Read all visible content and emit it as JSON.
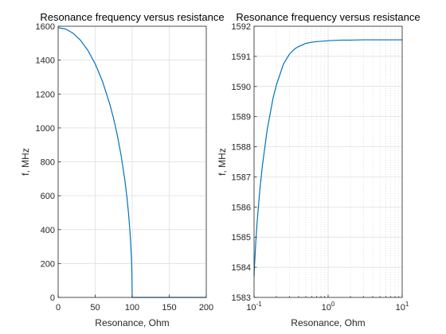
{
  "chart_data": [
    {
      "type": "line",
      "title": "Resonance frequency versus resistance",
      "xlabel": "Resonance, Ohm",
      "ylabel": "f, MHz",
      "xlim": [
        0,
        200
      ],
      "ylim": [
        0,
        1600
      ],
      "xscale": "linear",
      "grid": true,
      "xticks": [
        0,
        50,
        100,
        150,
        200
      ],
      "xtick_labels": [
        "0",
        "50",
        "100",
        "150",
        "200"
      ],
      "yticks": [
        0,
        200,
        400,
        600,
        800,
        1000,
        1200,
        1400,
        1600
      ],
      "ytick_labels": [
        "0",
        "200",
        "400",
        "600",
        "800",
        "1000",
        "1200",
        "1400",
        "1600"
      ],
      "series": [
        {
          "color": "#0072BD",
          "x": [
            0,
            10,
            20,
            30,
            40,
            50,
            60,
            70,
            75,
            80,
            85,
            90,
            93,
            95,
            97,
            98,
            99,
            99.5,
            100,
            100.5,
            110,
            120,
            140,
            160,
            180,
            200
          ],
          "y": [
            1591.5,
            1583.6,
            1559.4,
            1518.2,
            1458.6,
            1378.3,
            1273.2,
            1136.6,
            1052.6,
            954.9,
            838.4,
            693.7,
            586.7,
            496.9,
            385.9,
            316.7,
            224.5,
            158.9,
            0,
            0,
            0,
            0,
            0,
            0,
            0,
            0
          ]
        }
      ]
    },
    {
      "type": "line",
      "title": "Resonance frequency versus resistance",
      "xlabel": "Resonance, Ohm",
      "ylabel": "f, MHz",
      "xlim": [
        0.1,
        10
      ],
      "ylim": [
        1583,
        1592
      ],
      "xscale": "log",
      "grid": true,
      "xticks": [
        0.1,
        1,
        10
      ],
      "xtick_labels": [
        {
          "base": "10",
          "exp": "-1"
        },
        {
          "base": "10",
          "exp": "0"
        },
        {
          "base": "10",
          "exp": "1"
        }
      ],
      "yticks": [
        1583,
        1584,
        1585,
        1586,
        1587,
        1588,
        1589,
        1590,
        1591,
        1592
      ],
      "ytick_labels": [
        "1583",
        "1584",
        "1585",
        "1586",
        "1587",
        "1588",
        "1589",
        "1590",
        "1591",
        "1592"
      ],
      "series": [
        {
          "color": "#0072BD",
          "x": [
            0.1,
            0.101,
            0.103,
            0.105,
            0.11,
            0.12,
            0.13,
            0.15,
            0.18,
            0.2,
            0.25,
            0.3,
            0.35,
            0.4,
            0.5,
            0.6,
            0.7,
            0.8,
            1,
            1.2,
            1.5,
            2,
            3,
            5,
            7,
            10
          ],
          "y": [
            1583.7,
            1584.0,
            1584.35,
            1584.75,
            1585.5,
            1586.6,
            1587.4,
            1588.55,
            1589.6,
            1590.05,
            1590.75,
            1591.07,
            1591.24,
            1591.33,
            1591.43,
            1591.47,
            1591.49,
            1591.5,
            1591.52,
            1591.53,
            1591.54,
            1591.54,
            1591.55,
            1591.55,
            1591.55,
            1591.55
          ]
        }
      ]
    }
  ]
}
